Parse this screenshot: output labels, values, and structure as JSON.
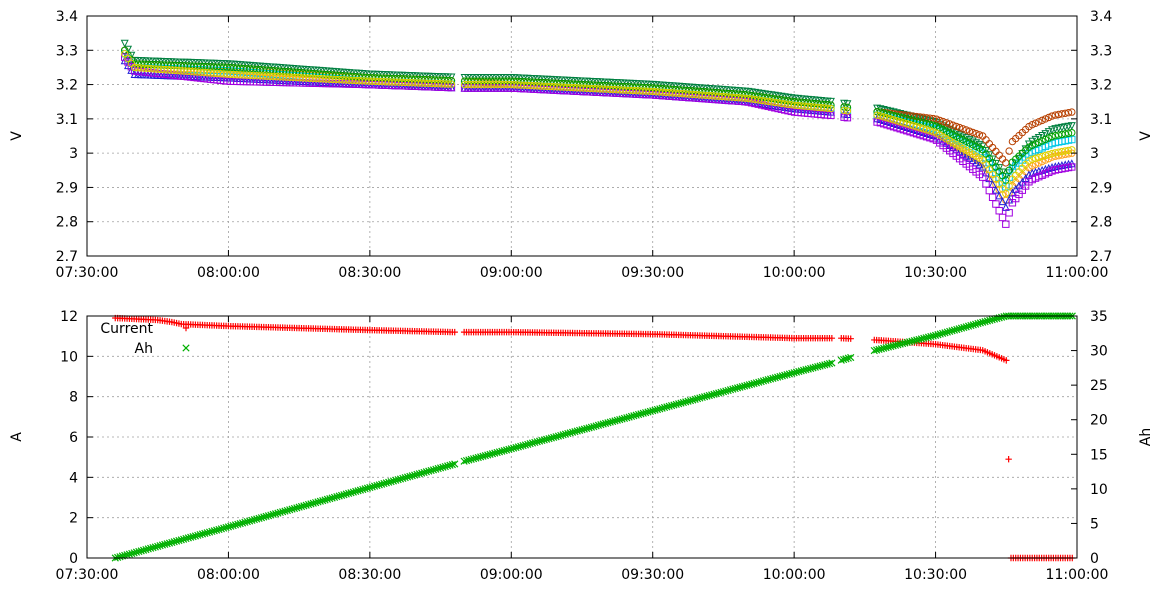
{
  "chart_data": [
    {
      "type": "scatter",
      "title": "",
      "xlabel": "",
      "ylabel": "V",
      "y2label": "V",
      "xlim": [
        "07:30:00",
        "11:00:00"
      ],
      "ylim": [
        2.7,
        3.4
      ],
      "y2lim": [
        2.7,
        3.4
      ],
      "grid": true,
      "x_ticks": [
        "07:30:00",
        "08:00:00",
        "08:30:00",
        "09:00:00",
        "09:30:00",
        "10:00:00",
        "10:30:00",
        "11:00:00"
      ],
      "y_ticks": [
        "2.7",
        "2.8",
        "2.9",
        "3",
        "3.1",
        "3.2",
        "3.3",
        "3.4"
      ],
      "y2_ticks": [
        "2.7",
        "2.8",
        "2.9",
        "3",
        "3.1",
        "3.2",
        "3.3",
        "3.4"
      ],
      "series_style": [
        {
          "color": "#008040",
          "marker": "triangle-down"
        },
        {
          "color": "#b84000",
          "marker": "circle"
        },
        {
          "color": "#ffa020",
          "marker": "circle"
        },
        {
          "color": "#00c8e8",
          "marker": "square"
        },
        {
          "color": "#00a000",
          "marker": "circle"
        },
        {
          "color": "#2020d8",
          "marker": "triangle"
        },
        {
          "color": "#a000e0",
          "marker": "square"
        },
        {
          "color": "#e0d000",
          "marker": "circle"
        }
      ],
      "series_values": [
        {
          "x": [
            "07:38",
            "07:40",
            "08:00",
            "08:30",
            "08:50",
            "09:00",
            "09:30",
            "09:50",
            "10:00",
            "10:08",
            "10:18",
            "10:30",
            "10:40",
            "10:45",
            "10:46",
            "10:50",
            "10:55",
            "10:59"
          ],
          "y": [
            3.32,
            3.27,
            3.26,
            3.23,
            3.22,
            3.22,
            3.2,
            3.18,
            3.16,
            3.15,
            3.13,
            3.09,
            3.02,
            2.93,
            2.95,
            3.03,
            3.07,
            3.08
          ]
        },
        {
          "x": [
            "07:38",
            "07:40",
            "08:00",
            "08:30",
            "08:50",
            "09:00",
            "09:30",
            "09:50",
            "10:00",
            "10:08",
            "10:18",
            "10:30",
            "10:40",
            "10:45",
            "10:46",
            "10:50",
            "10:55",
            "10:59"
          ],
          "y": [
            3.3,
            3.26,
            3.25,
            3.22,
            3.21,
            3.21,
            3.19,
            3.17,
            3.15,
            3.14,
            3.12,
            3.1,
            3.05,
            2.97,
            3.03,
            3.08,
            3.11,
            3.12
          ]
        },
        {
          "x": [
            "07:38",
            "07:40",
            "08:00",
            "08:30",
            "08:50",
            "09:00",
            "09:30",
            "09:50",
            "10:00",
            "10:08",
            "10:18",
            "10:30",
            "10:40",
            "10:45",
            "10:46",
            "10:50",
            "10:55",
            "10:59"
          ],
          "y": [
            3.29,
            3.25,
            3.24,
            3.22,
            3.21,
            3.2,
            3.18,
            3.16,
            3.14,
            3.13,
            3.11,
            3.06,
            2.97,
            2.86,
            2.9,
            2.96,
            2.99,
            3.0
          ]
        },
        {
          "x": [
            "07:38",
            "07:40",
            "08:00",
            "08:30",
            "08:50",
            "09:00",
            "09:30",
            "09:50",
            "10:00",
            "10:08",
            "10:18",
            "10:30",
            "10:40",
            "10:45",
            "10:46",
            "10:50",
            "10:55",
            "10:59"
          ],
          "y": [
            3.29,
            3.25,
            3.24,
            3.21,
            3.2,
            3.2,
            3.18,
            3.16,
            3.14,
            3.13,
            3.11,
            3.07,
            3.0,
            2.9,
            2.95,
            3.0,
            3.03,
            3.04
          ]
        },
        {
          "x": [
            "07:38",
            "07:40",
            "08:00",
            "08:30",
            "08:50",
            "09:00",
            "09:30",
            "09:50",
            "10:00",
            "10:08",
            "10:18",
            "10:30",
            "10:40",
            "10:45",
            "10:46",
            "10:50",
            "10:55",
            "10:59"
          ],
          "y": [
            3.3,
            3.26,
            3.25,
            3.22,
            3.21,
            3.21,
            3.19,
            3.17,
            3.15,
            3.14,
            3.12,
            3.08,
            3.01,
            2.92,
            2.97,
            3.02,
            3.05,
            3.06
          ]
        },
        {
          "x": [
            "07:38",
            "07:40",
            "08:00",
            "08:30",
            "08:50",
            "09:00",
            "09:30",
            "09:50",
            "10:00",
            "10:08",
            "10:18",
            "10:30",
            "10:40",
            "10:45",
            "10:46",
            "10:50",
            "10:55",
            "10:59"
          ],
          "y": [
            3.27,
            3.23,
            3.22,
            3.2,
            3.19,
            3.19,
            3.17,
            3.15,
            3.13,
            3.12,
            3.1,
            3.05,
            2.96,
            2.84,
            2.88,
            2.94,
            2.96,
            2.97
          ]
        },
        {
          "x": [
            "07:38",
            "07:40",
            "08:00",
            "08:30",
            "08:50",
            "09:00",
            "09:30",
            "09:50",
            "10:00",
            "10:08",
            "10:18",
            "10:30",
            "10:40",
            "10:45",
            "10:46",
            "10:50",
            "10:55",
            "10:59"
          ],
          "y": [
            3.28,
            3.24,
            3.21,
            3.2,
            3.19,
            3.19,
            3.17,
            3.15,
            3.12,
            3.11,
            3.09,
            3.04,
            2.93,
            2.79,
            2.85,
            2.92,
            2.95,
            2.96
          ]
        },
        {
          "x": [
            "07:38",
            "07:40",
            "08:00",
            "08:30",
            "08:50",
            "09:00",
            "09:30",
            "09:50",
            "10:00",
            "10:08",
            "10:18",
            "10:30",
            "10:40",
            "10:45",
            "10:46",
            "10:50",
            "10:55",
            "10:59"
          ],
          "y": [
            3.29,
            3.25,
            3.23,
            3.21,
            3.2,
            3.2,
            3.18,
            3.16,
            3.14,
            3.13,
            3.11,
            3.06,
            2.98,
            2.88,
            2.92,
            2.98,
            3.0,
            3.01
          ]
        }
      ],
      "gaps": [
        [
          "08:48",
          "08:50"
        ],
        [
          "10:08",
          "10:10"
        ],
        [
          "10:12",
          "10:17"
        ]
      ]
    },
    {
      "type": "scatter",
      "title": "",
      "xlabel": "",
      "ylabel": "A",
      "y2label": "Ah",
      "xlim": [
        "07:30:00",
        "11:00:00"
      ],
      "ylim": [
        0,
        12
      ],
      "y2lim": [
        0,
        35
      ],
      "grid": true,
      "legend_position": "top-left",
      "x_ticks": [
        "07:30:00",
        "08:00:00",
        "08:30:00",
        "09:00:00",
        "09:30:00",
        "10:00:00",
        "10:30:00",
        "11:00:00"
      ],
      "y_ticks": [
        "0",
        "2",
        "4",
        "6",
        "8",
        "10",
        "12"
      ],
      "y2_ticks": [
        "0",
        "5",
        "10",
        "15",
        "20",
        "25",
        "30",
        "35"
      ],
      "series": [
        {
          "name": "Current",
          "axis": "left",
          "color": "#ff0000",
          "marker": "plus",
          "x": [
            "07:36",
            "07:45",
            "07:48",
            "07:50",
            "08:00",
            "08:30",
            "08:48",
            "08:50",
            "09:00",
            "09:30",
            "10:00",
            "10:08",
            "10:10",
            "10:18",
            "10:30",
            "10:40",
            "10:45",
            "10:46",
            "10:50",
            "10:55",
            "10:59"
          ],
          "y": [
            11.9,
            11.8,
            11.7,
            11.6,
            11.5,
            11.3,
            11.2,
            11.2,
            11.2,
            11.1,
            10.9,
            10.9,
            10.9,
            10.8,
            10.6,
            10.3,
            9.8,
            0,
            0,
            0,
            0
          ]
        },
        {
          "name": "Ah",
          "axis": "right",
          "color": "#00b000",
          "marker": "cross",
          "x": [
            "07:36",
            "08:00",
            "08:30",
            "08:48",
            "08:50",
            "09:00",
            "09:30",
            "10:00",
            "10:08",
            "10:10",
            "10:11",
            "10:17",
            "10:30",
            "10:40",
            "10:45",
            "10:50",
            "10:55",
            "10:59"
          ],
          "y": [
            0,
            4.5,
            10.2,
            13.6,
            14,
            15.8,
            21.3,
            26.8,
            28.2,
            28.6,
            28.8,
            30,
            32.2,
            34.1,
            35,
            35,
            35,
            35
          ]
        }
      ]
    }
  ]
}
